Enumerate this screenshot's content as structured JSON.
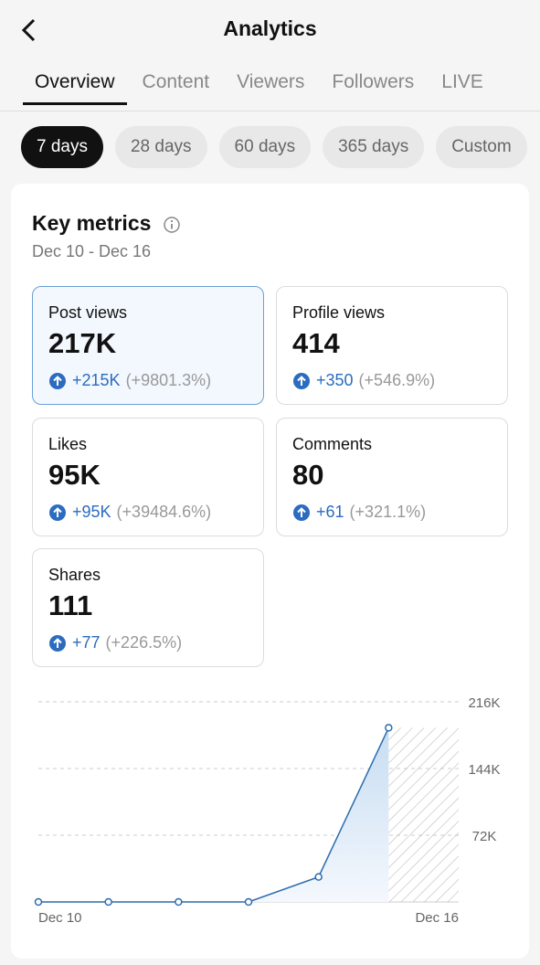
{
  "header": {
    "title": "Analytics"
  },
  "tabs": [
    "Overview",
    "Content",
    "Viewers",
    "Followers",
    "LIVE"
  ],
  "ranges": [
    "7 days",
    "28 days",
    "60 days",
    "365 days",
    "Custom"
  ],
  "card": {
    "title": "Key metrics",
    "date_range": "Dec 10 - Dec 16"
  },
  "metrics": [
    {
      "label": "Post views",
      "value": "217K",
      "change": "+215K",
      "percent": "(+9801.3%)"
    },
    {
      "label": "Profile views",
      "value": "414",
      "change": "+350",
      "percent": "(+546.9%)"
    },
    {
      "label": "Likes",
      "value": "95K",
      "change": "+95K",
      "percent": "(+39484.6%)"
    },
    {
      "label": "Comments",
      "value": "80",
      "change": "+61",
      "percent": "(+321.1%)"
    },
    {
      "label": "Shares",
      "value": "111",
      "change": "+77",
      "percent": "(+226.5%)"
    }
  ],
  "chart_data": {
    "type": "line",
    "categories": [
      "Dec 10",
      null,
      null,
      null,
      null,
      null,
      "Dec 16"
    ],
    "series": [
      {
        "color": "#2b6cae",
        "values": [
          0,
          0,
          0,
          0,
          27000,
          188000,
          null
        ]
      }
    ],
    "ylim": [
      0,
      216000
    ],
    "yticks": [
      {
        "value": 72000,
        "label": "72K"
      },
      {
        "value": 144000,
        "label": "144K"
      },
      {
        "value": 216000,
        "label": "216K"
      }
    ],
    "grid": true
  }
}
